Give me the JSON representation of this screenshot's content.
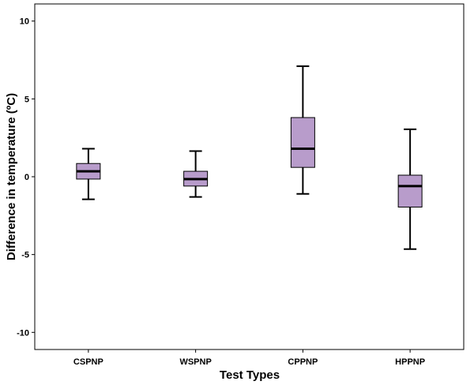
{
  "chart_data": {
    "type": "box",
    "title": "",
    "xlabel": "Test Types",
    "ylabel": "Difference in temperature (ºC)",
    "ylim": [
      -11.1,
      11.1
    ],
    "y_ticks": [
      10,
      5,
      0,
      -5,
      -10
    ],
    "y_tick_labels": [
      "10",
      "5",
      "0",
      "-5",
      "-10"
    ],
    "grid": false,
    "legend": "none",
    "categories": [
      "CSPNP",
      "WSPNP",
      "CPPNP",
      "HPPNP"
    ],
    "boxes": [
      {
        "category": "CSPNP",
        "min": -1.45,
        "q1": -0.15,
        "median": 0.35,
        "q3": 0.85,
        "max": 1.8
      },
      {
        "category": "WSPNP",
        "min": -1.3,
        "q1": -0.6,
        "median": -0.15,
        "q3": 0.35,
        "max": 1.65
      },
      {
        "category": "CPPNP",
        "min": -1.1,
        "q1": 0.6,
        "median": 1.8,
        "q3": 3.8,
        "max": 7.1
      },
      {
        "category": "HPPNP",
        "min": -4.65,
        "q1": -1.95,
        "median": -0.6,
        "q3": 0.1,
        "max": 3.05
      }
    ],
    "colors": {
      "box_fill": "#b89ccb",
      "stroke": "#000000",
      "background": "#ffffff"
    }
  }
}
